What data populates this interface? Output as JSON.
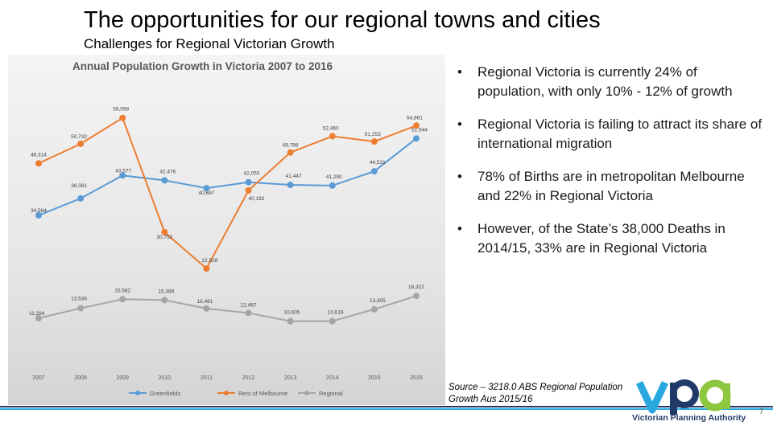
{
  "slide": {
    "title": "The opportunities for our regional towns and cities",
    "subtitle": "Challenges for Regional Victorian Growth",
    "page_number": "7"
  },
  "bullets": [
    "Regional Victoria is currently 24% of population, with only 10% - 12% of growth",
    "Regional Victoria is failing to attract its share of international migration",
    "78% of Births are in metropolitan Melbourne and 22% in Regional Victoria",
    "However, of the State’s 38,000 Deaths in 2014/15,  33% are in Regional Victoria"
  ],
  "source_text": "Source – 3218.0 ABS Regional Population Growth Aus 2015/16",
  "logo": {
    "letters": "vpa",
    "text": "Victorian Planning Authority"
  },
  "colors": {
    "greenfields": "#5b9bd5",
    "rest_of_melbourne": "#ed7d31",
    "regional": "#a5a5a5",
    "logo_blue": "#1f3a68",
    "logo_cyan": "#29a8e0",
    "logo_green": "#8dc63f"
  },
  "chart_data": {
    "type": "line",
    "title": "Annual Population Growth in Victoria 2007 to 2016",
    "categories": [
      "2007",
      "2008",
      "2009",
      "2010",
      "2011",
      "2012",
      "2013",
      "2014",
      "2015",
      "2016"
    ],
    "series": [
      {
        "name": "Greenfields",
        "color": "#5b9bd5",
        "values": [
          34564,
          38381,
          43577,
          42476,
          40697,
          42050,
          41447,
          41290,
          44531,
          51944
        ],
        "labels": [
          "34,564",
          "38,381",
          "43,577",
          "42,476",
          "40,697",
          "42,050",
          "41,447",
          "41,290",
          "44,531",
          "51,944"
        ]
      },
      {
        "name": "Rest of Melbourne",
        "color": "#ed7d31",
        "values": [
          46314,
          50732,
          56598,
          30752,
          22528,
          40182,
          48788,
          52460,
          51253,
          54861
        ],
        "labels": [
          "46,314",
          "50,732",
          "56,598",
          "30,752",
          "22,528",
          "40,182",
          "48,788",
          "52,460",
          "51,253",
          "54,861"
        ]
      },
      {
        "name": "Regional",
        "color": "#a5a5a5",
        "values": [
          11294,
          13536,
          15582,
          15389,
          13481,
          12467,
          10605,
          10616,
          13305,
          16322
        ],
        "labels": [
          "11,294",
          "13,536",
          "15,582",
          "15,389",
          "13,481",
          "12,467",
          "10,605",
          "10,616",
          "13,305",
          "16,322"
        ]
      }
    ],
    "ylim": [
      0,
      60000
    ],
    "grid": false,
    "legend": "bottom"
  }
}
